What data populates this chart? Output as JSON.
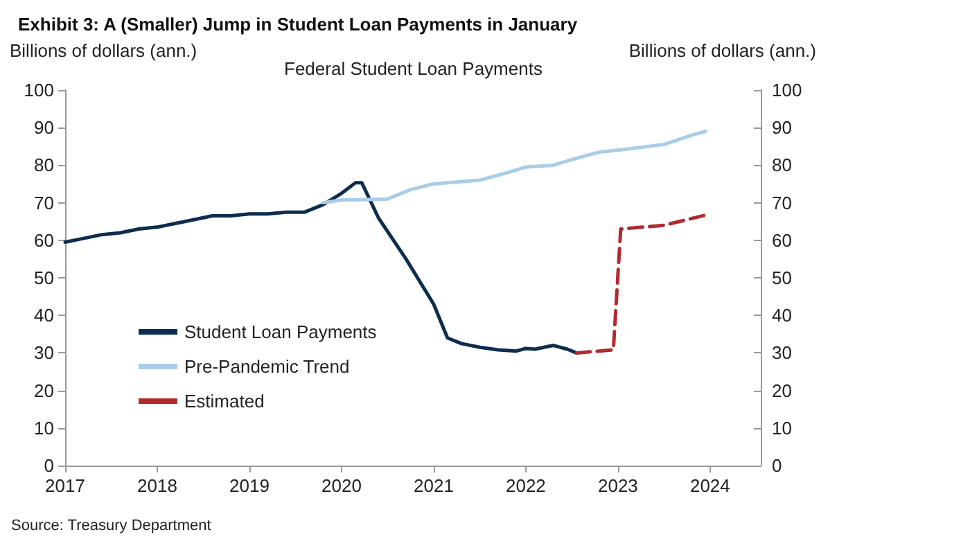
{
  "chart_data": {
    "type": "line",
    "title": "Exhibit 3: A (Smaller) Jump in Student Loan Payments in January",
    "subtitle": "Federal Student Loan Payments",
    "ylabel": "Billions of dollars (ann.)",
    "y2label": "Billions of dollars (ann.)",
    "annotations": [
      "Source: Treasury Department"
    ],
    "series": [
      {
        "name": "Student Loan Payments",
        "color": "#0d2d4f",
        "line_style": "solid",
        "x": [
          2017,
          2017.2,
          2017.4,
          2017.6,
          2017.8,
          2018,
          2018.3,
          2018.6,
          2018.8,
          2019,
          2019.2,
          2019.4,
          2019.6,
          2019.8,
          2020,
          2020.15,
          2020.22,
          2020.4,
          2020.7,
          2021,
          2021.15,
          2021.3,
          2021.5,
          2021.7,
          2021.9,
          2022,
          2022.1,
          2022.3,
          2022.45,
          2022.55
        ],
        "values": [
          59.5,
          60.5,
          61.5,
          62,
          63,
          63.5,
          65,
          66.5,
          66.5,
          67,
          67,
          67.5,
          67.5,
          69.5,
          72.5,
          75.3,
          75.3,
          66,
          55,
          43,
          34,
          32.5,
          31.5,
          30.8,
          30.5,
          31.2,
          31,
          32,
          31,
          30
        ]
      },
      {
        "name": "Pre-Pandemic Trend",
        "color": "#a9cde8",
        "line_style": "solid",
        "x": [
          2019.8,
          2020,
          2020.5,
          2020.75,
          2021,
          2021.5,
          2021.8,
          2022,
          2022.3,
          2022.5,
          2022.8,
          2023,
          2023.5,
          2023.8,
          2023.95
        ],
        "values": [
          70,
          70.7,
          71,
          73.5,
          75,
          76,
          78,
          79.5,
          80,
          81.5,
          83.5,
          84,
          85.5,
          88,
          89
        ]
      },
      {
        "name": "Estimated",
        "color": "#b22a2e",
        "line_style": "dashed",
        "x": [
          2022.55,
          2022.95,
          2023.03,
          2023.5,
          2023.95
        ],
        "values": [
          30,
          30.8,
          63,
          64,
          66.7
        ]
      }
    ],
    "xlim": [
      2017,
      2024.55
    ],
    "xticks": [
      2017,
      2018,
      2019,
      2020,
      2021,
      2022,
      2023,
      2024
    ],
    "ylim": [
      0,
      100
    ],
    "yticks": [
      0,
      10,
      20,
      30,
      40,
      50,
      60,
      70,
      80,
      90,
      100
    ],
    "y2lim": [
      0,
      100
    ],
    "y2ticks": [
      0,
      10,
      20,
      30,
      40,
      50,
      60,
      70,
      80,
      90,
      100
    ],
    "legend": "bottom left",
    "grid": false,
    "marker": "none"
  }
}
